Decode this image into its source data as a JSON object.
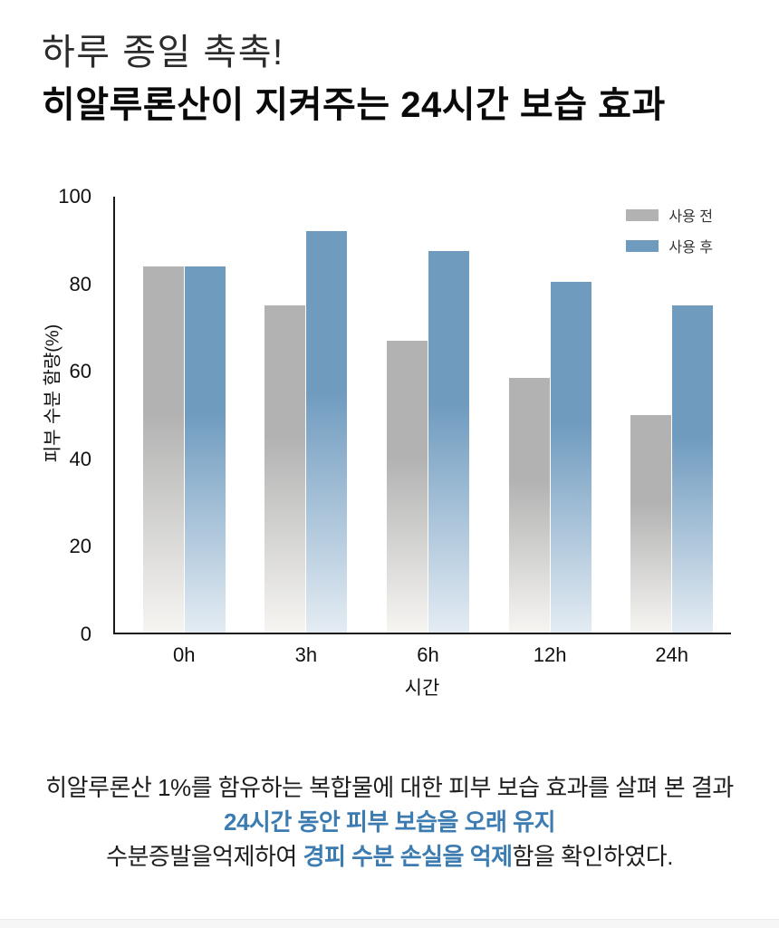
{
  "header": {
    "subtitle": "하루 종일 촉촉!",
    "title": "히알루론산이 지켜주는 24시간 보습 효과"
  },
  "chart_data": {
    "type": "bar",
    "title": "",
    "categories": [
      "0h",
      "3h",
      "6h",
      "12h",
      "24h"
    ],
    "series": [
      {
        "name": "사용 전",
        "color": "#b2b2b2",
        "fade": "#f6f5f2",
        "values": [
          84,
          75,
          67,
          58.5,
          50
        ]
      },
      {
        "name": "사용 후",
        "color": "#6f9bbf",
        "fade": "#e4ecf3",
        "values": [
          84,
          92,
          87.5,
          80.5,
          75
        ]
      }
    ],
    "xlabel": "시간",
    "ylabel": "피부 수분 함량(%)",
    "ylim": [
      0,
      100
    ],
    "yticks": [
      0,
      20,
      40,
      60,
      80,
      100
    ],
    "grid": false,
    "legend_position": "top-right",
    "axis_color": "#1a1a1a"
  },
  "caption": {
    "line1": "히알루론산 1%를 함유하는 복합물에 대한 피부 보습 효과를 살펴 본 결과",
    "line2": "24시간 동안 피부 보습을 오래 유지",
    "line3_prefix": "수분증발을억제하여 ",
    "line3_highlight": "경피 수분 손실을 억제",
    "line3_suffix": "함을 확인하였다.",
    "highlight_color": "#3d7cb1"
  }
}
